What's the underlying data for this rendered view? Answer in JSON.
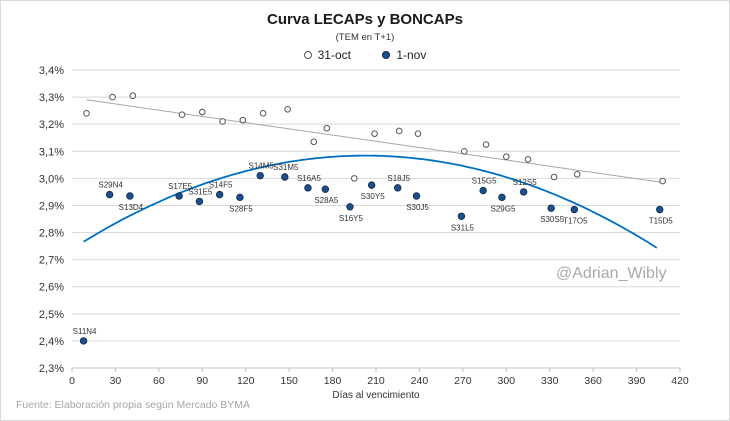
{
  "chart_data": {
    "type": "scatter",
    "title": "Curva LECAPs y BONCAPs",
    "subtitle": "(TEM en T+1)",
    "xlabel": "Días al vencimiento",
    "ylabel": "",
    "xlim": [
      0,
      420
    ],
    "ylim": [
      2.3,
      3.4
    ],
    "x_ticks": [
      0,
      30,
      60,
      90,
      120,
      150,
      180,
      210,
      240,
      270,
      300,
      330,
      360,
      390,
      420
    ],
    "y_ticks": [
      2.3,
      2.4,
      2.5,
      2.6,
      2.7,
      2.8,
      2.9,
      3.0,
      3.1,
      3.2,
      3.3,
      3.4
    ],
    "y_tick_labels": [
      "2,3%",
      "2,4%",
      "2,5%",
      "2,6%",
      "2,7%",
      "2,8%",
      "2,9%",
      "3,0%",
      "3,1%",
      "3,2%",
      "3,3%",
      "3,4%"
    ],
    "grid": "horizontal",
    "legend_position": "top",
    "series": [
      {
        "name": "31-oct",
        "marker": "hollow-circle",
        "color": "#555555",
        "points": [
          {
            "x": 10,
            "y": 3.24
          },
          {
            "x": 28,
            "y": 3.3
          },
          {
            "x": 42,
            "y": 3.305
          },
          {
            "x": 76,
            "y": 3.235
          },
          {
            "x": 90,
            "y": 3.245
          },
          {
            "x": 104,
            "y": 3.21
          },
          {
            "x": 118,
            "y": 3.215
          },
          {
            "x": 132,
            "y": 3.24
          },
          {
            "x": 149,
            "y": 3.255
          },
          {
            "x": 167,
            "y": 3.135
          },
          {
            "x": 176,
            "y": 3.185
          },
          {
            "x": 195,
            "y": 3.0
          },
          {
            "x": 209,
            "y": 3.165
          },
          {
            "x": 226,
            "y": 3.175
          },
          {
            "x": 239,
            "y": 3.165
          },
          {
            "x": 271,
            "y": 3.1
          },
          {
            "x": 286,
            "y": 3.125
          },
          {
            "x": 300,
            "y": 3.08
          },
          {
            "x": 315,
            "y": 3.07
          },
          {
            "x": 333,
            "y": 3.005
          },
          {
            "x": 349,
            "y": 3.015
          },
          {
            "x": 408,
            "y": 2.99
          }
        ],
        "trendline": {
          "type": "linear",
          "color": "#a6a6a6",
          "x_start": 10,
          "x_end": 408,
          "y_start": 3.29,
          "y_end": 2.985
        }
      },
      {
        "name": "1-nov",
        "marker": "filled-circle",
        "color": "#1f4e8c",
        "points": [
          {
            "x": 8,
            "y": 2.4,
            "label": "S11N4"
          },
          {
            "x": 26,
            "y": 2.94,
            "label": "S29N4"
          },
          {
            "x": 40,
            "y": 2.935,
            "label": "S13D4"
          },
          {
            "x": 74,
            "y": 2.935,
            "label": "S17E5"
          },
          {
            "x": 88,
            "y": 2.915,
            "label": "S31E5"
          },
          {
            "x": 102,
            "y": 2.94,
            "label": "S14F5"
          },
          {
            "x": 116,
            "y": 2.93,
            "label": "S28F5"
          },
          {
            "x": 130,
            "y": 3.01,
            "label": "S14M5"
          },
          {
            "x": 147,
            "y": 3.005,
            "label": "S31M5"
          },
          {
            "x": 163,
            "y": 2.965,
            "label": "S16A5"
          },
          {
            "x": 175,
            "y": 2.96,
            "label": "S28A5"
          },
          {
            "x": 192,
            "y": 2.895,
            "label": "S16Y5"
          },
          {
            "x": 207,
            "y": 2.975,
            "label": "S30Y5"
          },
          {
            "x": 225,
            "y": 2.965,
            "label": "S18J5"
          },
          {
            "x": 238,
            "y": 2.935,
            "label": "S30J5"
          },
          {
            "x": 269,
            "y": 2.86,
            "label": "S31L5"
          },
          {
            "x": 284,
            "y": 2.955,
            "label": "S15G5"
          },
          {
            "x": 297,
            "y": 2.93,
            "label": "S29G5"
          },
          {
            "x": 312,
            "y": 2.95,
            "label": "S12S5"
          },
          {
            "x": 331,
            "y": 2.89,
            "label": "S30S5"
          },
          {
            "x": 347,
            "y": 2.885,
            "label": "T17O5"
          },
          {
            "x": 406,
            "y": 2.885,
            "label": "T15D5"
          }
        ],
        "trendline": {
          "type": "polynomial-2",
          "color": "#0070c0",
          "a": -8.39e-06,
          "b": 0.0034,
          "c": 2.7395,
          "x_start": 8,
          "x_end": 404
        }
      }
    ]
  },
  "footer": {
    "source": "Fuente: Elaboración propia según Mercado BYMA",
    "watermark": "@Adrian_Wibly"
  }
}
